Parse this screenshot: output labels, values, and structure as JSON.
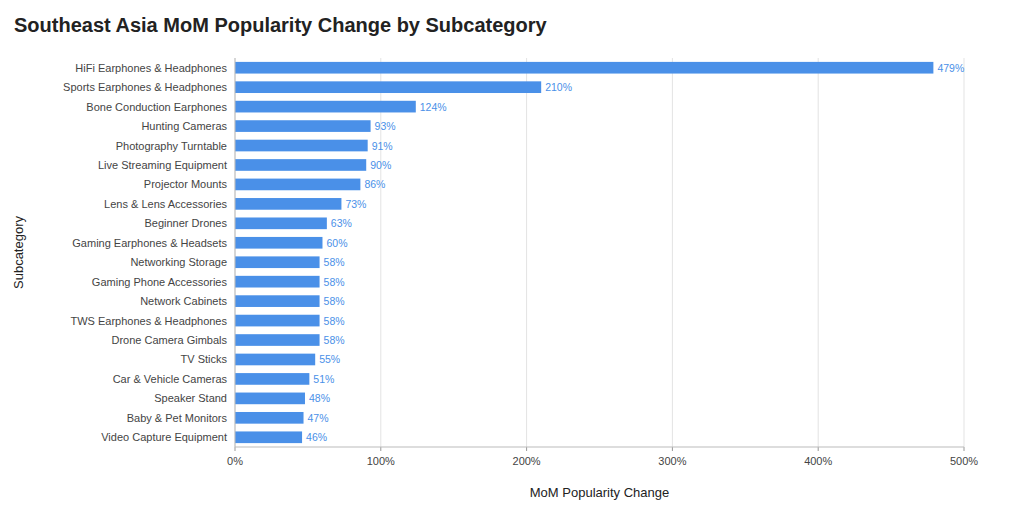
{
  "chart_data": {
    "type": "bar",
    "orientation": "horizontal",
    "title": "Southeast Asia MoM Popularity Change by Subcategory",
    "x_label": "MoM Popularity Change",
    "y_label": "Subcategory",
    "categories": [
      "Video Capture Equipment",
      "Baby & Pet Monitors",
      "Speaker Stand",
      "Car & Vehicle Cameras",
      "TV Sticks",
      "Drone Camera Gimbals",
      "TWS Earphones & Headphones",
      "Network Cabinets",
      "Gaming Phone Accessories",
      "Networking Storage",
      "Gaming Earphones & Headsets",
      "Beginner Drones",
      "Lens & Lens Accessories",
      "Projector Mounts",
      "Live Streaming Equipment",
      "Photography Turntable",
      "Hunting Cameras",
      "Bone Conduction Earphones",
      "Sports Earphones & Headphones",
      "HiFi Earphones & Headphones"
    ],
    "values": [
      46,
      47,
      48,
      51,
      55,
      58,
      58,
      58,
      58,
      58,
      60,
      63,
      73,
      86,
      90,
      91,
      93,
      124,
      210,
      479
    ],
    "value_labels": [
      "46%",
      "47%",
      "48%",
      "51%",
      "55%",
      "58%",
      "58%",
      "58%",
      "58%",
      "58%",
      "60%",
      "63%",
      "73%",
      "86%",
      "90%",
      "91%",
      "93%",
      "124%",
      "210%",
      "479%"
    ],
    "data_labels": true,
    "color": "#4a90e8",
    "xlim": [
      0,
      500
    ],
    "xticks": [
      {
        "value": 0,
        "label": "0%"
      },
      {
        "value": 100,
        "label": "100%"
      },
      {
        "value": 200,
        "label": "200%"
      },
      {
        "value": 300,
        "label": "300%"
      },
      {
        "value": 400,
        "label": "400%"
      },
      {
        "value": 500,
        "label": "500%"
      }
    ],
    "grid": true
  }
}
